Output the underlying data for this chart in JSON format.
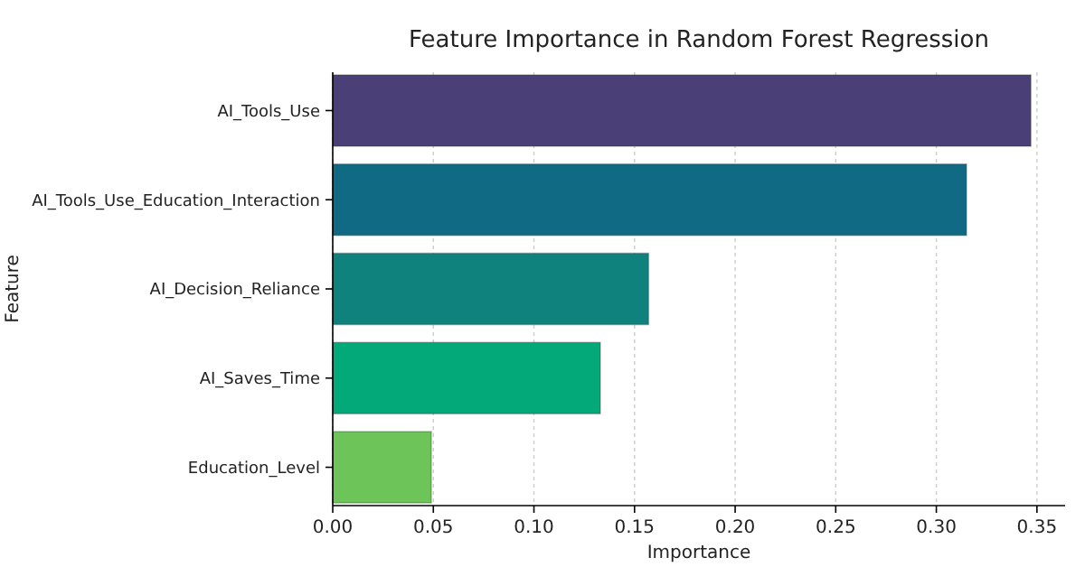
{
  "chart_data": {
    "type": "bar",
    "orientation": "horizontal",
    "title": "Feature Importance in Random Forest Regression",
    "xlabel": "Importance",
    "ylabel": "Feature",
    "categories": [
      "AI_Tools_Use",
      "AI_Tools_Use_Education_Interaction",
      "AI_Decision_Reliance",
      "AI_Saves_Time",
      "Education_Level"
    ],
    "values": [
      0.347,
      0.315,
      0.157,
      0.133,
      0.049
    ],
    "colors": [
      "#4b3f78",
      "#106a84",
      "#0f827e",
      "#04a97a",
      "#6dc55a"
    ],
    "xlim": [
      0,
      0.364
    ],
    "xticks": [
      {
        "value": 0,
        "label": "0.00"
      },
      {
        "value": 0.05,
        "label": "0.05"
      },
      {
        "value": 0.1,
        "label": "0.10"
      },
      {
        "value": 0.15,
        "label": "0.15"
      },
      {
        "value": 0.2,
        "label": "0.20"
      },
      {
        "value": 0.25,
        "label": "0.25"
      },
      {
        "value": 0.3,
        "label": "0.30"
      },
      {
        "value": 0.35,
        "label": "0.35"
      }
    ],
    "grid": "x"
  }
}
